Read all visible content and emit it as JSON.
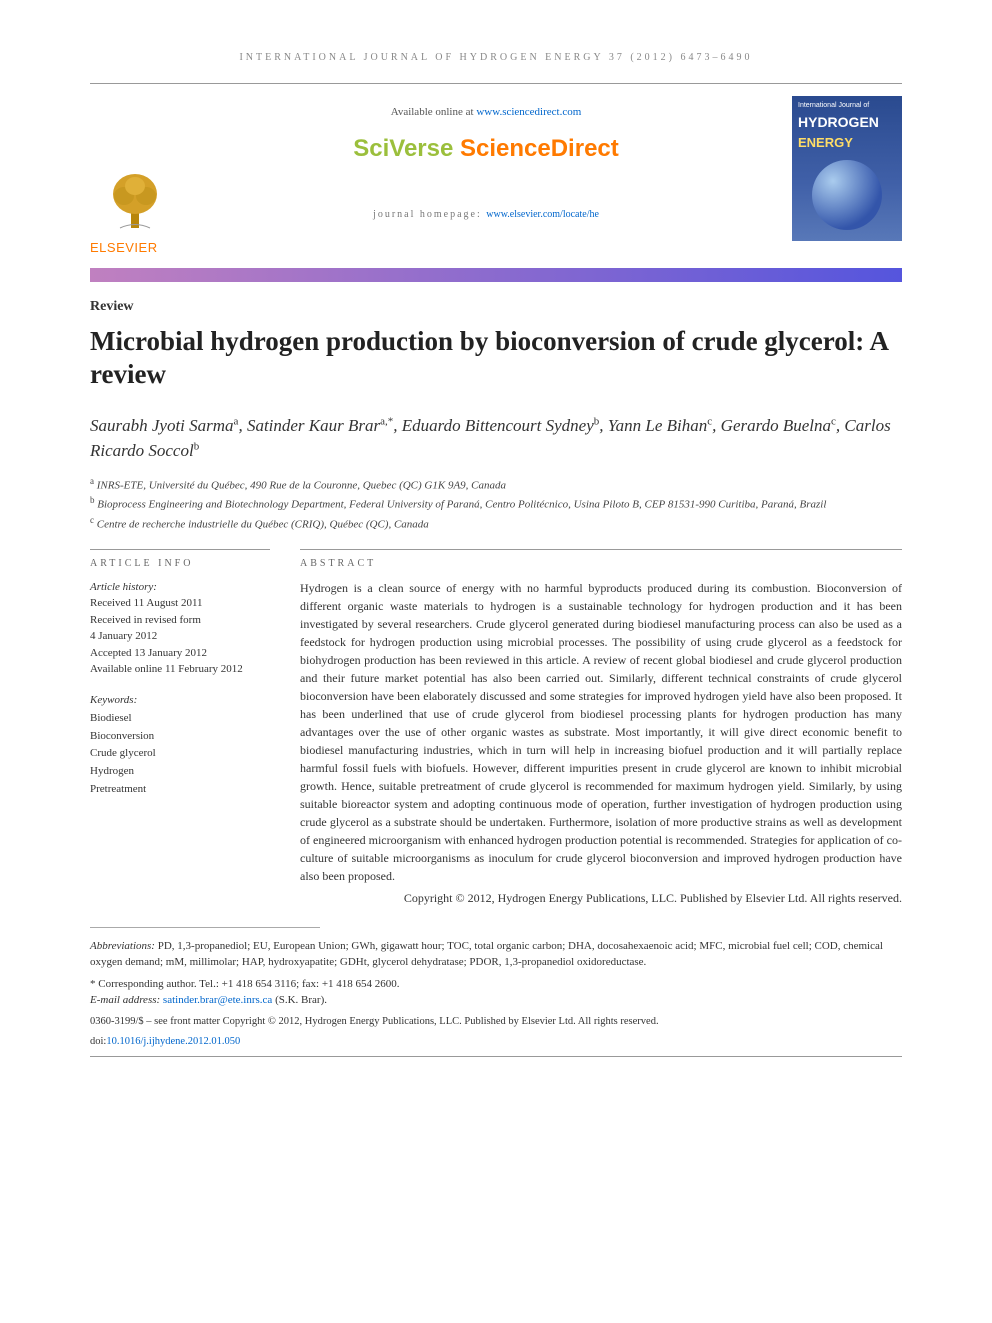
{
  "running_head": "INTERNATIONAL JOURNAL OF HYDROGEN ENERGY 37 (2012) 6473–6490",
  "header": {
    "available_prefix": "Available online at ",
    "available_link_text": "www.sciencedirect.com",
    "available_link_href": "http://www.sciencedirect.com",
    "sciverse": "SciVerse",
    "sciencedirect": " ScienceDirect",
    "homepage_prefix": "journal homepage: ",
    "homepage_link_text": "www.elsevier.com/locate/he",
    "homepage_link_href": "http://www.elsevier.com/locate/he",
    "publisher_name": "ELSEVIER",
    "cover_supertitle": "International Journal of",
    "cover_title1": "HYDROGEN",
    "cover_title2": "ENERGY"
  },
  "article": {
    "type": "Review",
    "title": "Microbial hydrogen production by bioconversion of crude glycerol: A review",
    "authors_html": "Saurabh Jyoti Sarma<sup>a</sup>, Satinder Kaur Brar<sup>a,*</sup>, Eduardo Bittencourt Sydney<sup>b</sup>, Yann Le Bihan<sup>c</sup>, Gerardo Buelna<sup>c</sup>, Carlos Ricardo Soccol<sup>b</sup>",
    "affiliations": [
      {
        "marker": "a",
        "text": "INRS-ETE, Université du Québec, 490 Rue de la Couronne, Quebec (QC) G1K 9A9, Canada"
      },
      {
        "marker": "b",
        "text": "Bioprocess Engineering and Biotechnology Department, Federal University of Paraná, Centro Politécnico, Usina Piloto B, CEP 81531-990 Curitiba, Paraná, Brazil"
      },
      {
        "marker": "c",
        "text": "Centre de recherche industrielle du Québec (CRIQ), Québec (QC), Canada"
      }
    ]
  },
  "info": {
    "head": "ARTICLE INFO",
    "history_label": "Article history:",
    "history": [
      "Received 11 August 2011",
      "Received in revised form",
      "4 January 2012",
      "Accepted 13 January 2012",
      "Available online 11 February 2012"
    ],
    "keywords_label": "Keywords:",
    "keywords": [
      "Biodiesel",
      "Bioconversion",
      "Crude glycerol",
      "Hydrogen",
      "Pretreatment"
    ]
  },
  "abstract": {
    "head": "ABSTRACT",
    "body": "Hydrogen is a clean source of energy with no harmful byproducts produced during its combustion. Bioconversion of different organic waste materials to hydrogen is a sustainable technology for hydrogen production and it has been investigated by several researchers. Crude glycerol generated during biodiesel manufacturing process can also be used as a feedstock for hydrogen production using microbial processes. The possibility of using crude glycerol as a feedstock for biohydrogen production has been reviewed in this article. A review of recent global biodiesel and crude glycerol production and their future market potential has also been carried out. Similarly, different technical constraints of crude glycerol bioconversion have been elaborately discussed and some strategies for improved hydrogen yield have also been proposed. It has been underlined that use of crude glycerol from biodiesel processing plants for hydrogen production has many advantages over the use of other organic wastes as substrate. Most importantly, it will give direct economic benefit to biodiesel manufacturing industries, which in turn will help in increasing biofuel production and it will partially replace harmful fossil fuels with biofuels. However, different impurities present in crude glycerol are known to inhibit microbial growth. Hence, suitable pretreatment of crude glycerol is recommended for maximum hydrogen yield. Similarly, by using suitable bioreactor system and adopting continuous mode of operation, further investigation of hydrogen production using crude glycerol as a substrate should be undertaken. Furthermore, isolation of more productive strains as well as development of engineered microorganism with enhanced hydrogen production potential is recommended. Strategies for application of co-culture of suitable microorganisms as inoculum for crude glycerol bioconversion and improved hydrogen production have also been proposed.",
    "copyright_inline": "Copyright © 2012, Hydrogen Energy Publications, LLC. Published by Elsevier Ltd. All rights reserved."
  },
  "footnotes": {
    "abbrev_label": "Abbreviations:",
    "abbrev_text": " PD, 1,3-propanediol; EU, European Union; GWh, gigawatt hour; TOC, total organic carbon; DHA, docosahexaenoic acid; MFC, microbial fuel cell; COD, chemical oxygen demand; mM, millimolar; HAP, hydroxyapatite; GDHt, glycerol dehydratase; PDOR, 1,3-propanediol oxidoreductase.",
    "corresponding": "* Corresponding author. Tel.: +1 418 654 3116; fax: +1 418 654 2600.",
    "email_label": "E-mail address: ",
    "email": "satinder.brar@ete.inrs.ca",
    "email_after": " (S.K. Brar).",
    "issn_line": "0360-3199/$ – see front matter Copyright © 2012, Hydrogen Energy Publications, LLC. Published by Elsevier Ltd. All rights reserved.",
    "doi_label": "doi:",
    "doi_text": "10.1016/j.ijhydene.2012.01.050",
    "doi_href": "https://doi.org/10.1016/j.ijhydene.2012.01.050"
  },
  "colors": {
    "link": "#0066cc",
    "orange": "#ff7a00",
    "green": "#9bbf3c",
    "bar_from": "#c080c0",
    "bar_to": "#5555dd",
    "cover_bg": "#2a4a8f"
  }
}
